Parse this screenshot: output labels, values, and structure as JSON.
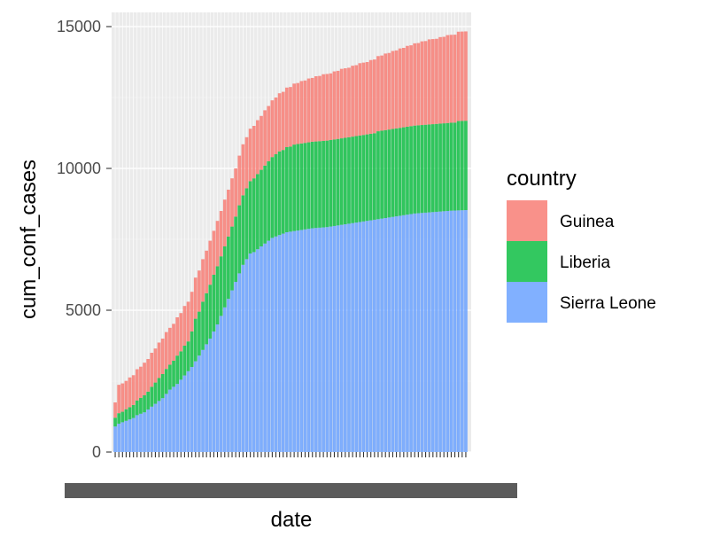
{
  "chart_data": {
    "type": "bar",
    "stacked": true,
    "xlabel": "date",
    "ylabel": "cum_conf_cases",
    "ylim": [
      0,
      15500
    ],
    "y_ticks": [
      0,
      5000,
      10000,
      15000
    ],
    "grid": true,
    "legend_position": "right",
    "legend_title": "country",
    "x_tick_labels_overlapping": true,
    "stack_order_bottom_to_top": [
      "Sierra Leone",
      "Liberia",
      "Guinea"
    ],
    "series": [
      {
        "name": "Guinea",
        "color": "#F8766D",
        "values": [
          540,
          1000,
          1000,
          1000,
          1050,
          1050,
          1100,
          1100,
          1150,
          1150,
          1200,
          1200,
          1250,
          1250,
          1300,
          1300,
          1300,
          1350,
          1350,
          1400,
          1400,
          1400,
          1450,
          1450,
          1500,
          1500,
          1550,
          1550,
          1600,
          1600,
          1650,
          1650,
          1700,
          1700,
          1750,
          1800,
          1800,
          1850,
          1850,
          1900,
          1900,
          1950,
          1950,
          2000,
          2000,
          2050,
          2050,
          2100,
          2100,
          2150,
          2150,
          2200,
          2200,
          2250,
          2250,
          2300,
          2300,
          2350,
          2350,
          2350,
          2400,
          2400,
          2450,
          2450,
          2450,
          2500,
          2500,
          2550,
          2550,
          2550,
          2600,
          2600,
          2650,
          2650,
          2700,
          2700,
          2750,
          2750,
          2800,
          2800,
          2850,
          2850,
          2900,
          2900,
          2950,
          2950,
          3000,
          3000,
          3000,
          3050,
          3050,
          3100,
          3100,
          3100,
          3150,
          3150,
          3150
        ]
      },
      {
        "name": "Liberia",
        "color": "#00BA38",
        "values": [
          310,
          370,
          370,
          410,
          430,
          460,
          520,
          560,
          600,
          630,
          700,
          750,
          810,
          850,
          880,
          880,
          920,
          1000,
          1000,
          1050,
          1050,
          1250,
          1500,
          1550,
          1700,
          1800,
          1900,
          2000,
          2050,
          2100,
          2150,
          2200,
          2250,
          2300,
          2400,
          2450,
          2500,
          2550,
          2600,
          2650,
          2700,
          2750,
          2800,
          2850,
          2900,
          2950,
          2950,
          3000,
          3000,
          3050,
          3050,
          3050,
          3050,
          3050,
          3050,
          3050,
          3050,
          3050,
          3050,
          3050,
          3050,
          3050,
          3050,
          3050,
          3050,
          3050,
          3050,
          3050,
          3050,
          3050,
          3050,
          3050,
          3100,
          3100,
          3100,
          3100,
          3100,
          3100,
          3100,
          3100,
          3100,
          3100,
          3100,
          3100,
          3100,
          3100,
          3100,
          3100,
          3100,
          3100,
          3100,
          3100,
          3100,
          3100,
          3150,
          3150,
          3150
        ]
      },
      {
        "name": "Sierra Leone",
        "color": "#619CFF",
        "values": [
          900,
          1000,
          1050,
          1100,
          1150,
          1200,
          1300,
          1350,
          1400,
          1500,
          1600,
          1700,
          1800,
          1900,
          2050,
          2200,
          2300,
          2400,
          2550,
          2700,
          2850,
          3000,
          3200,
          3400,
          3600,
          3800,
          4000,
          4250,
          4500,
          4800,
          5100,
          5400,
          5700,
          6000,
          6300,
          6600,
          6800,
          7000,
          7050,
          7150,
          7250,
          7350,
          7450,
          7550,
          7600,
          7650,
          7700,
          7750,
          7770,
          7790,
          7810,
          7830,
          7850,
          7870,
          7890,
          7900,
          7910,
          7920,
          7930,
          7950,
          7970,
          7990,
          8010,
          8030,
          8050,
          8070,
          8090,
          8110,
          8130,
          8150,
          8170,
          8190,
          8210,
          8230,
          8250,
          8270,
          8290,
          8310,
          8330,
          8350,
          8370,
          8390,
          8410,
          8420,
          8430,
          8440,
          8450,
          8460,
          8470,
          8480,
          8490,
          8500,
          8510,
          8515,
          8520,
          8525,
          8530
        ]
      }
    ]
  }
}
